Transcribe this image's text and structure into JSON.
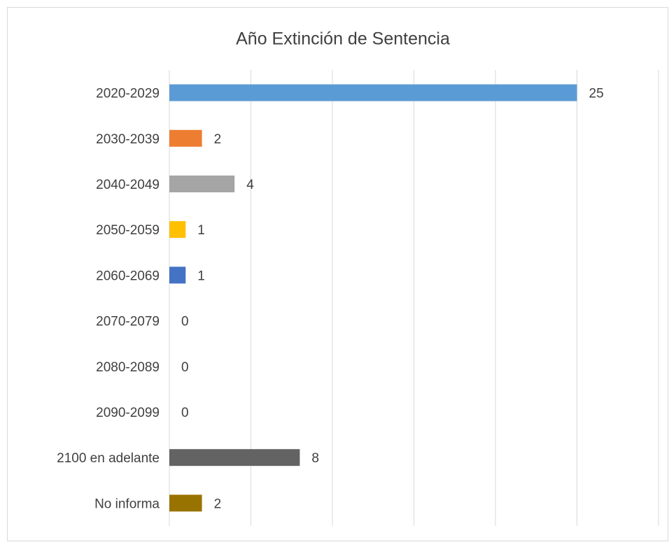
{
  "chart_data": {
    "type": "barh",
    "title": "Año Extinción de Sentencia",
    "categories": [
      "2020-2029",
      "2030-2039",
      "2040-2049",
      "2050-2059",
      "2060-2069",
      "2070-2079",
      "2080-2089",
      "2090-2099",
      "2100 en adelante",
      "No informa"
    ],
    "values": [
      25,
      2,
      4,
      1,
      1,
      0,
      0,
      0,
      8,
      2
    ],
    "colors": [
      "#5b9bd5",
      "#ed7d31",
      "#a5a5a5",
      "#ffc000",
      "#4472c4",
      "#70ad47",
      "#264478",
      "#9e480e",
      "#636363",
      "#997300"
    ],
    "xlim": [
      0,
      30
    ],
    "xticks": [
      0,
      5,
      10,
      15,
      20,
      25,
      30
    ],
    "show_tick_labels": false,
    "grid": true
  }
}
